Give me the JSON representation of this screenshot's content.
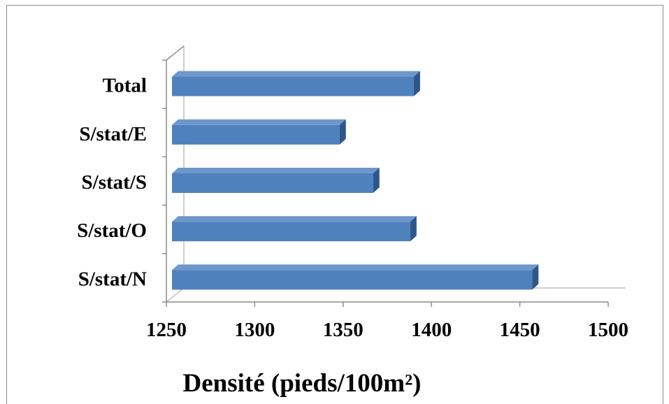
{
  "chart_data": {
    "type": "bar",
    "orientation": "horizontal",
    "style": "3d",
    "categories": [
      "S/stat/N",
      "S/stat/O",
      "S/stat/S",
      "S/stat/E",
      "Total"
    ],
    "values": [
      1457,
      1388,
      1367,
      1348,
      1390
    ],
    "xlabel": "Densité (pieds/100m²)",
    "ylabel": "",
    "xlim": [
      1250,
      1500
    ],
    "xticks": [
      1250,
      1300,
      1350,
      1400,
      1450,
      1500
    ],
    "grid": false,
    "legend": "none",
    "colors": {
      "bar_front": "#4f81bd",
      "bar_top": "#6d97cc",
      "bar_side": "#2e5688",
      "axis": "#8c8c8c"
    }
  }
}
